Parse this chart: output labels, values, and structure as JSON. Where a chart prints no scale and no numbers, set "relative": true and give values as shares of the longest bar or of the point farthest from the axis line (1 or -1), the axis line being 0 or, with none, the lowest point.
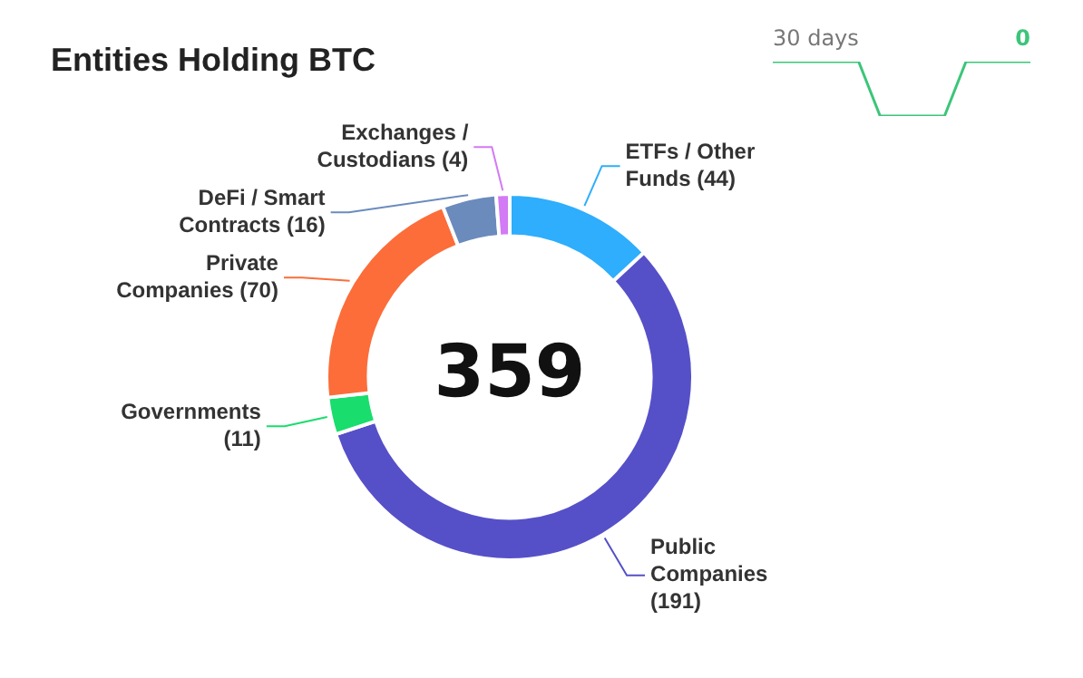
{
  "chart_data": [
    {
      "type": "donut",
      "title": "Entities Holding BTC",
      "categories": [
        "ETFs / Other Funds",
        "Public Companies",
        "Governments",
        "Private Companies",
        "DeFi / Smart Contracts",
        "Exchanges / Custodians"
      ],
      "values": [
        44,
        191,
        11,
        70,
        16,
        4
      ],
      "colors": [
        "#2eaefc",
        "#5550c8",
        "#19dd6d",
        "#fc6d3a",
        "#6b8bbd",
        "#d37af5"
      ],
      "value_labels": [
        "(44)",
        "(191)",
        "(11)",
        "(70)",
        "(16)",
        "(4)"
      ],
      "legend": false,
      "annotations": [
        "359"
      ]
    },
    {
      "type": "line",
      "title": "30 days",
      "categories": [
        null,
        null,
        null,
        null,
        null,
        null,
        null,
        null,
        null,
        null,
        null,
        null,
        null
      ],
      "series": [
        {
          "color": "#3cc57a",
          "values": [
            1,
            1,
            1,
            1,
            1,
            0,
            0,
            0,
            0,
            1,
            1,
            1,
            1
          ]
        }
      ],
      "relative": true,
      "annotations": [
        "0"
      ],
      "marker": "none"
    }
  ]
}
